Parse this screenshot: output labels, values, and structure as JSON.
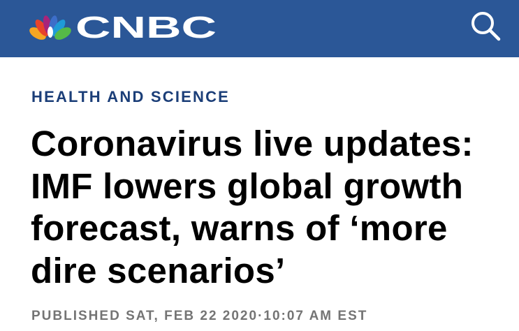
{
  "header": {
    "logo": "CNBC"
  },
  "article": {
    "section": "HEALTH AND SCIENCE",
    "headline_lines": [
      "Coronavirus live updates:",
      "IMF lowers global growth",
      "forecast, warns of ‘more",
      "dire scenarios’"
    ],
    "published": "PUBLISHED SAT, FEB 22 2020·10:07 AM EST"
  }
}
